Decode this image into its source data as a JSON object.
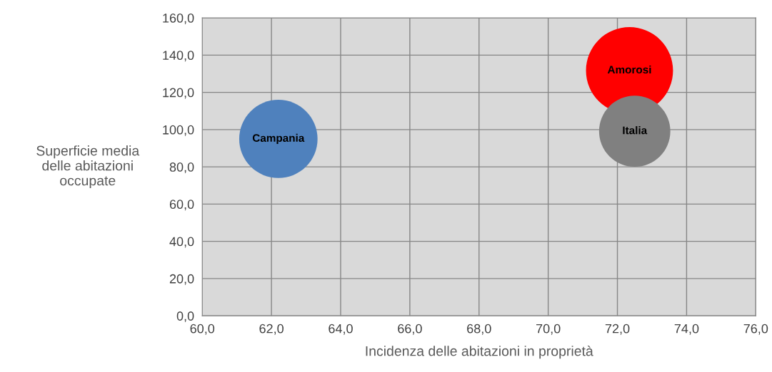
{
  "chart_data": {
    "type": "bubble",
    "xlabel": "Incidenza delle abitazioni in proprietà",
    "ylabel": "Superficie media\ndelle abitazioni\noccupate",
    "series": [
      {
        "name": "Campania",
        "color": "#4f81bd",
        "x": [
          62.2
        ],
        "values": [
          95.0
        ],
        "sizes": [
          0.81
        ]
      },
      {
        "name": "Amorosi",
        "color": "#ff0000",
        "x": [
          72.35
        ],
        "values": [
          131.7
        ],
        "sizes": [
          1
        ]
      },
      {
        "name": "Italia",
        "color": "#808080",
        "x": [
          72.5
        ],
        "values": [
          99.1
        ],
        "sizes": [
          0.67
        ]
      }
    ],
    "xlim": [
      60,
      76
    ],
    "xticks": [
      {
        "value": 60,
        "label": "60,0"
      },
      {
        "value": 62,
        "label": "62,0"
      },
      {
        "value": 64,
        "label": "64,0"
      },
      {
        "value": 66,
        "label": "66,0"
      },
      {
        "value": 68,
        "label": "68,0"
      },
      {
        "value": 70,
        "label": "70,0"
      },
      {
        "value": 72,
        "label": "72,0"
      },
      {
        "value": 74,
        "label": "74,0"
      },
      {
        "value": 76,
        "label": "76,0"
      }
    ],
    "ylim": [
      0,
      160
    ],
    "yticks": [
      {
        "value": 0,
        "label": "0,0"
      },
      {
        "value": 20,
        "label": "20,0"
      },
      {
        "value": 40,
        "label": "40,0"
      },
      {
        "value": 60,
        "label": "60,0"
      },
      {
        "value": 80,
        "label": "80,0"
      },
      {
        "value": 100,
        "label": "100,0"
      },
      {
        "value": 120,
        "label": "120,0"
      },
      {
        "value": 140,
        "label": "140,0"
      },
      {
        "value": 160,
        "label": "160,0"
      }
    ],
    "grid": true,
    "legend": false
  }
}
